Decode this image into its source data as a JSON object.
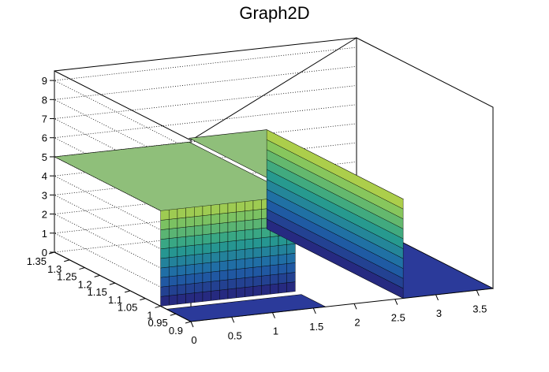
{
  "chart_data": {
    "type": "surface",
    "title": "Graph2D",
    "x_ticks": [
      "0",
      "0.5",
      "1",
      "1.5",
      "2",
      "2.5",
      "3",
      "3.5"
    ],
    "y_ticks": [
      "0.9",
      "0.95",
      "1",
      "1.05",
      "1.1",
      "1.15",
      "1.2",
      "1.25",
      "1.3",
      "1.35"
    ],
    "z_ticks": [
      "0",
      "1",
      "2",
      "3",
      "4",
      "5",
      "6",
      "7",
      "8",
      "9"
    ],
    "xlim": [
      0,
      3.7
    ],
    "ylim": [
      0.9,
      1.35
    ],
    "zlim": [
      0,
      9.5
    ],
    "grid": true,
    "colormap": "viridis-like",
    "regions": [
      {
        "x": [
          0.0,
          1.65
        ],
        "y": [
          0.9,
          1.35
        ],
        "z": 5.0,
        "note": "upper plateau"
      },
      {
        "x": [
          0.0,
          1.65
        ],
        "y": [
          0.9,
          0.98
        ],
        "z": 0.0
      },
      {
        "x": [
          1.65,
          2.6
        ],
        "y": [
          0.9,
          1.35
        ],
        "z": 5.2,
        "note": "ridge"
      },
      {
        "x": [
          2.6,
          3.7
        ],
        "y": [
          0.9,
          1.35
        ],
        "z": 0.0
      }
    ]
  }
}
